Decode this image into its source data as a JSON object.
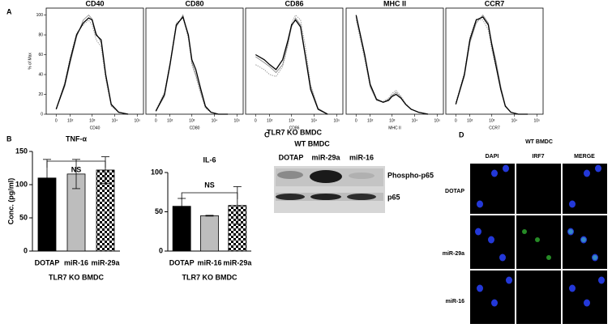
{
  "panel_labels": [
    "A",
    "B",
    "C",
    "D"
  ],
  "flow_x_title": "TLR7 KO BMDC",
  "chart_data": [
    {
      "type": "line",
      "title": "CD40",
      "x_label": "CD40",
      "y_label": "% of Max",
      "xscale": "logicle",
      "xlim": [
        -60,
        190000
      ],
      "ylim": [
        0,
        107
      ],
      "yticks": [
        0,
        20,
        40,
        60,
        80,
        100
      ],
      "xticks": [
        0,
        {
          "value": 100,
          "label": "10²"
        },
        {
          "value": 1000,
          "label": "10³"
        },
        {
          "value": 10000,
          "label": "10⁴"
        },
        {
          "value": 100000,
          "label": "10⁵"
        }
      ],
      "x": [
        0,
        50,
        100,
        200,
        400,
        700,
        1000,
        1500,
        2500,
        4000,
        7000,
        15000,
        40000
      ],
      "series": [
        {
          "color": "#000000",
          "dashed": false,
          "values": [
            5,
            30,
            55,
            80,
            92,
            97,
            95,
            80,
            75,
            40,
            10,
            2,
            0
          ]
        },
        {
          "color": "#8c8c8c",
          "dashed": false,
          "values": [
            5,
            28,
            52,
            78,
            95,
            100,
            96,
            82,
            72,
            38,
            9,
            2,
            0
          ]
        },
        {
          "color": "#9a9a9a",
          "dashed": true,
          "values": [
            6,
            32,
            58,
            82,
            90,
            95,
            90,
            75,
            68,
            35,
            8,
            2,
            0
          ]
        }
      ]
    },
    {
      "type": "line",
      "title": "CD80",
      "x_label": "CD80",
      "xscale": "logicle",
      "xlim": [
        -60,
        190000
      ],
      "ylim": [
        0,
        107
      ],
      "xticks": [
        0,
        {
          "value": 100,
          "label": "10²"
        },
        {
          "value": 1000,
          "label": "10³"
        },
        {
          "value": 10000,
          "label": "10⁴"
        },
        {
          "value": 100000,
          "label": "10⁵"
        }
      ],
      "x": [
        0,
        50,
        100,
        200,
        400,
        700,
        1000,
        1500,
        2500,
        4000,
        7000,
        15000,
        40000
      ],
      "series": [
        {
          "color": "#000000",
          "dashed": false,
          "values": [
            3,
            20,
            50,
            90,
            98,
            80,
            55,
            45,
            25,
            8,
            2,
            0,
            0
          ]
        },
        {
          "color": "#8c8c8c",
          "dashed": false,
          "values": [
            3,
            18,
            48,
            88,
            100,
            78,
            52,
            40,
            22,
            7,
            2,
            0,
            0
          ]
        },
        {
          "color": "#9a9a9a",
          "dashed": true,
          "values": [
            4,
            22,
            52,
            92,
            97,
            76,
            50,
            38,
            20,
            6,
            2,
            0,
            0
          ]
        }
      ]
    },
    {
      "type": "line",
      "title": "CD86",
      "x_label": "CD86",
      "xscale": "logicle",
      "xlim": [
        -60,
        190000
      ],
      "ylim": [
        0,
        107
      ],
      "xticks": [
        0,
        {
          "value": 100,
          "label": "10²"
        },
        {
          "value": 1000,
          "label": "10³"
        },
        {
          "value": 10000,
          "label": "10⁴"
        },
        {
          "value": 100000,
          "label": "10⁵"
        }
      ],
      "x": [
        0,
        50,
        100,
        200,
        400,
        700,
        1000,
        1500,
        2500,
        4000,
        7000,
        15000,
        40000
      ],
      "series": [
        {
          "color": "#000000",
          "dashed": false,
          "values": [
            60,
            55,
            50,
            45,
            55,
            75,
            90,
            95,
            88,
            60,
            25,
            5,
            0
          ]
        },
        {
          "color": "#8c8c8c",
          "dashed": false,
          "values": [
            58,
            52,
            48,
            42,
            50,
            72,
            88,
            97,
            90,
            62,
            28,
            6,
            0
          ]
        },
        {
          "color": "#9a9a9a",
          "dashed": true,
          "values": [
            50,
            45,
            40,
            38,
            48,
            70,
            92,
            100,
            95,
            70,
            30,
            6,
            0
          ]
        }
      ]
    },
    {
      "type": "line",
      "title": "MHC II",
      "x_label": "MHC II",
      "xscale": "logicle",
      "xlim": [
        -60,
        190000
      ],
      "ylim": [
        0,
        107
      ],
      "xticks": [
        0,
        {
          "value": 100,
          "label": "10²"
        },
        {
          "value": 1000,
          "label": "10³"
        },
        {
          "value": 10000,
          "label": "10⁴"
        },
        {
          "value": 100000,
          "label": "10⁵"
        }
      ],
      "x": [
        0,
        50,
        100,
        200,
        400,
        700,
        1000,
        1500,
        2500,
        4000,
        7000,
        15000,
        40000
      ],
      "series": [
        {
          "color": "#000000",
          "dashed": false,
          "values": [
            100,
            60,
            30,
            15,
            12,
            14,
            18,
            20,
            16,
            10,
            5,
            2,
            0
          ]
        },
        {
          "color": "#8c8c8c",
          "dashed": false,
          "values": [
            98,
            58,
            28,
            14,
            12,
            15,
            19,
            22,
            17,
            10,
            5,
            2,
            0
          ]
        },
        {
          "color": "#9a9a9a",
          "dashed": true,
          "values": [
            95,
            55,
            27,
            14,
            13,
            16,
            21,
            24,
            18,
            11,
            5,
            2,
            0
          ]
        }
      ]
    },
    {
      "type": "line",
      "title": "CCR7",
      "x_label": "CCR7",
      "xscale": "logicle",
      "xlim": [
        -60,
        190000
      ],
      "ylim": [
        0,
        107
      ],
      "xticks": [
        0,
        {
          "value": 100,
          "label": "10²"
        },
        {
          "value": 1000,
          "label": "10³"
        },
        {
          "value": 10000,
          "label": "10⁴"
        },
        {
          "value": 100000,
          "label": "10⁵"
        }
      ],
      "x": [
        0,
        50,
        100,
        200,
        400,
        700,
        1000,
        1500,
        2500,
        4000,
        7000,
        15000,
        40000
      ],
      "series": [
        {
          "color": "#000000",
          "dashed": false,
          "values": [
            10,
            40,
            75,
            95,
            98,
            90,
            70,
            50,
            25,
            8,
            2,
            0,
            0
          ]
        },
        {
          "color": "#8c8c8c",
          "dashed": false,
          "values": [
            10,
            38,
            72,
            92,
            100,
            92,
            72,
            55,
            28,
            9,
            2,
            0,
            0
          ]
        },
        {
          "color": "#9a9a9a",
          "dashed": true,
          "values": [
            12,
            42,
            78,
            96,
            95,
            85,
            65,
            48,
            24,
            8,
            2,
            0,
            0
          ]
        }
      ]
    },
    {
      "type": "bar",
      "title": "TNF-α",
      "y_label": "Conc. (pg/ml)",
      "x_label": "TLR7 KO BMDC",
      "annotation": "NS",
      "categories": [
        "DOTAP",
        "miR-16",
        "miR-29a"
      ],
      "values": [
        110,
        116,
        122
      ],
      "errors": [
        28,
        22,
        20
      ],
      "fills": [
        "solid-black",
        "solid-grey",
        "checker"
      ],
      "ylim": [
        0,
        150
      ],
      "yticks": [
        0,
        50,
        100,
        150
      ]
    },
    {
      "type": "bar",
      "title": "IL-6",
      "x_label": "TLR7 KO BMDC",
      "annotation": "NS",
      "categories": [
        "DOTAP",
        "miR-16",
        "miR-29a"
      ],
      "values": [
        57,
        45,
        58
      ],
      "errors": [
        10,
        0.5,
        24
      ],
      "fills": [
        "solid-black",
        "solid-grey",
        "checker"
      ],
      "ylim": [
        0,
        100
      ],
      "yticks": [
        0,
        50,
        100
      ]
    }
  ],
  "blot": {
    "title": "WT BMDC",
    "lanes": [
      "DOTAP",
      "miR-29a",
      "miR-16"
    ],
    "bands": [
      "Phospho-p65",
      "p65"
    ]
  },
  "microscopy": {
    "title": "WT BMDC",
    "columns": [
      "DAPI",
      "IRF7",
      "MERGE"
    ],
    "rows": [
      "DOTAP",
      "miR-29a",
      "miR-16"
    ]
  }
}
